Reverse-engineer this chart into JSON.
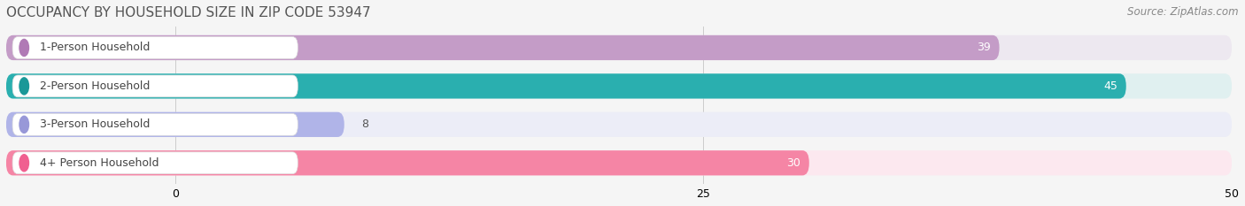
{
  "title": "OCCUPANCY BY HOUSEHOLD SIZE IN ZIP CODE 53947",
  "source": "Source: ZipAtlas.com",
  "categories": [
    "1-Person Household",
    "2-Person Household",
    "3-Person Household",
    "4+ Person Household"
  ],
  "values": [
    39,
    45,
    8,
    30
  ],
  "bar_colors": [
    "#c49cc7",
    "#2aafaf",
    "#b0b4e8",
    "#f585a5"
  ],
  "bar_bg_colors": [
    "#ede8f0",
    "#e0f0f0",
    "#ecedf7",
    "#fce8ef"
  ],
  "dot_colors": [
    "#b07ab5",
    "#1a9898",
    "#9898d8",
    "#f06090"
  ],
  "xlim_min": -8,
  "xlim_max": 50,
  "xticks": [
    0,
    25,
    50
  ],
  "title_fontsize": 11,
  "label_fontsize": 9,
  "value_fontsize": 9,
  "source_fontsize": 8.5,
  "background_color": "#f5f5f5"
}
